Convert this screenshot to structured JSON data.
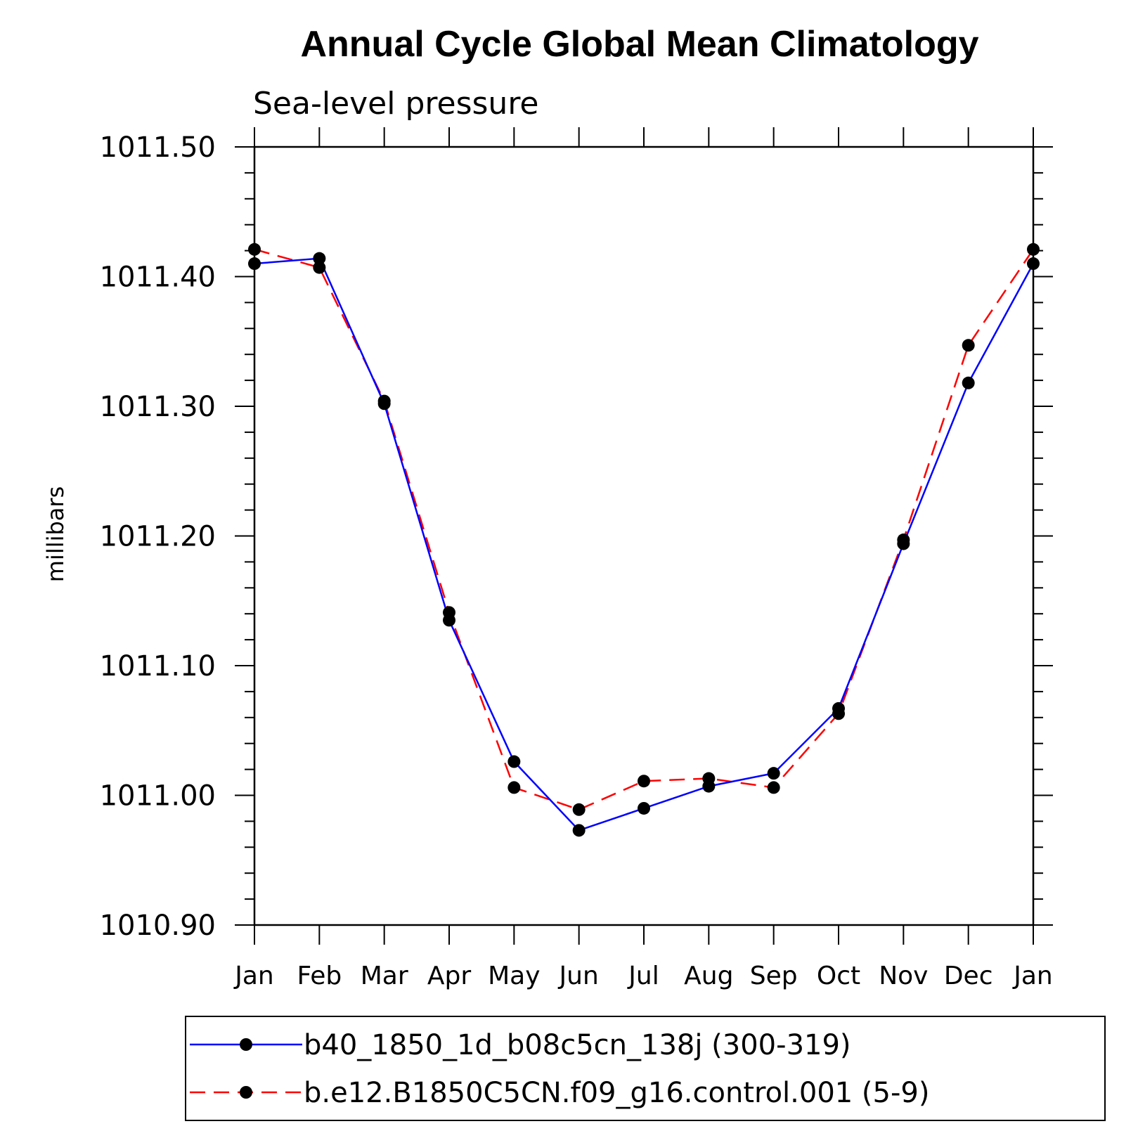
{
  "chart_data": {
    "type": "line",
    "title": "Annual Cycle Global Mean Climatology",
    "subtitle": "Sea-level pressure",
    "xlabel": "",
    "ylabel": "millibars",
    "categories": [
      "Jan",
      "Feb",
      "Mar",
      "Apr",
      "May",
      "Jun",
      "Jul",
      "Aug",
      "Sep",
      "Oct",
      "Nov",
      "Dec",
      "Jan"
    ],
    "ylim": [
      1010.9,
      1011.5
    ],
    "yticks": [
      "1010.90",
      "1011.00",
      "1011.10",
      "1011.20",
      "1011.30",
      "1011.40",
      "1011.50"
    ],
    "grid": false,
    "legend_position": "bottom",
    "series": [
      {
        "name": "b40_1850_1d_b08c5cn_138j (300-319)",
        "color": "#0000ff",
        "line_style": "solid",
        "marker": "filled-circle",
        "values": [
          1011.41,
          1011.414,
          1011.302,
          1011.135,
          1011.026,
          1010.973,
          1010.99,
          1011.007,
          1011.017,
          1011.067,
          1011.194,
          1011.318,
          1011.41
        ]
      },
      {
        "name": "b.e12.B1850C5CN.f09_g16.control.001 (5-9)",
        "color": "#ff0000",
        "line_style": "dashed",
        "marker": "filled-circle",
        "values": [
          1011.421,
          1011.407,
          1011.304,
          1011.141,
          1011.006,
          1010.989,
          1011.011,
          1011.013,
          1011.006,
          1011.063,
          1011.197,
          1011.347,
          1011.421
        ]
      }
    ]
  }
}
